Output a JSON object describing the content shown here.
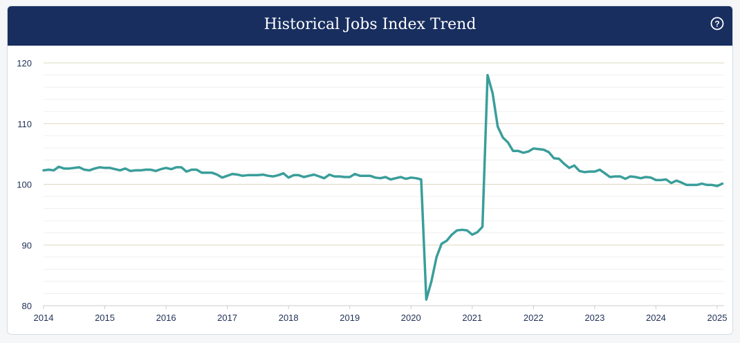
{
  "header": {
    "title": "Historical Jobs Index Trend",
    "help_icon": "question-circle-icon"
  },
  "colors": {
    "header_bg": "#182e5f",
    "line": "#3a9e9a",
    "grid": "#e6e2cf",
    "tick_text": "#1e2f55"
  },
  "chart_data": {
    "type": "line",
    "title": "Historical Jobs Index Trend",
    "xlabel": "",
    "ylabel": "",
    "ylim": [
      80,
      120
    ],
    "yticks": [
      80,
      90,
      100,
      110,
      120
    ],
    "xticks": [
      "2014",
      "2015",
      "2016",
      "2017",
      "2018",
      "2019",
      "2020",
      "2021",
      "2022",
      "2023",
      "2024",
      "2025"
    ],
    "xlim": [
      "2014-01",
      "2025-02"
    ],
    "grid": true,
    "legend": "none",
    "series": [
      {
        "x": [
          "2014-01",
          "2014-02",
          "2014-03",
          "2014-04",
          "2014-05",
          "2014-06",
          "2014-07",
          "2014-08",
          "2014-09",
          "2014-10",
          "2014-11",
          "2014-12",
          "2015-01",
          "2015-02",
          "2015-03",
          "2015-04",
          "2015-05",
          "2015-06",
          "2015-07",
          "2015-08",
          "2015-09",
          "2015-10",
          "2015-11",
          "2015-12",
          "2016-01",
          "2016-02",
          "2016-03",
          "2016-04",
          "2016-05",
          "2016-06",
          "2016-07",
          "2016-08",
          "2016-09",
          "2016-10",
          "2016-11",
          "2016-12",
          "2017-01",
          "2017-02",
          "2017-03",
          "2017-04",
          "2017-05",
          "2017-06",
          "2017-07",
          "2017-08",
          "2017-09",
          "2017-10",
          "2017-11",
          "2017-12",
          "2018-01",
          "2018-02",
          "2018-03",
          "2018-04",
          "2018-05",
          "2018-06",
          "2018-07",
          "2018-08",
          "2018-09",
          "2018-10",
          "2018-11",
          "2018-12",
          "2019-01",
          "2019-02",
          "2019-03",
          "2019-04",
          "2019-05",
          "2019-06",
          "2019-07",
          "2019-08",
          "2019-09",
          "2019-10",
          "2019-11",
          "2019-12",
          "2020-01",
          "2020-02",
          "2020-03",
          "2020-04",
          "2020-05",
          "2020-06",
          "2020-07",
          "2020-08",
          "2020-09",
          "2020-10",
          "2020-11",
          "2020-12",
          "2021-01",
          "2021-02",
          "2021-03",
          "2021-04",
          "2021-05",
          "2021-06",
          "2021-07",
          "2021-08",
          "2021-09",
          "2021-10",
          "2021-11",
          "2021-12",
          "2022-01",
          "2022-02",
          "2022-03",
          "2022-04",
          "2022-05",
          "2022-06",
          "2022-07",
          "2022-08",
          "2022-09",
          "2022-10",
          "2022-11",
          "2022-12",
          "2023-01",
          "2023-02",
          "2023-03",
          "2023-04",
          "2023-05",
          "2023-06",
          "2023-07",
          "2023-08",
          "2023-09",
          "2023-10",
          "2023-11",
          "2023-12",
          "2024-01",
          "2024-02",
          "2024-03",
          "2024-04",
          "2024-05",
          "2024-06",
          "2024-07",
          "2024-08",
          "2024-09",
          "2024-10",
          "2024-11",
          "2024-12",
          "2025-01",
          "2025-02"
        ],
        "values": [
          102.3,
          102.4,
          102.3,
          102.9,
          102.6,
          102.6,
          102.7,
          102.8,
          102.4,
          102.3,
          102.6,
          102.8,
          102.7,
          102.7,
          102.5,
          102.3,
          102.6,
          102.2,
          102.3,
          102.3,
          102.4,
          102.4,
          102.2,
          102.5,
          102.7,
          102.5,
          102.8,
          102.8,
          102.1,
          102.4,
          102.4,
          101.9,
          101.9,
          101.9,
          101.6,
          101.1,
          101.4,
          101.7,
          101.6,
          101.4,
          101.5,
          101.5,
          101.5,
          101.6,
          101.4,
          101.3,
          101.5,
          101.8,
          101.1,
          101.5,
          101.5,
          101.2,
          101.4,
          101.6,
          101.3,
          101.0,
          101.6,
          101.3,
          101.3,
          101.2,
          101.2,
          101.7,
          101.4,
          101.4,
          101.4,
          101.1,
          101.0,
          101.2,
          100.8,
          101.0,
          101.2,
          100.9,
          101.1,
          101.0,
          100.8,
          81.0,
          84.0,
          88.0,
          90.2,
          90.7,
          91.7,
          92.4,
          92.5,
          92.4,
          91.7,
          92.1,
          93.0,
          118.0,
          115.0,
          109.5,
          107.7,
          106.9,
          105.5,
          105.5,
          105.2,
          105.4,
          105.9,
          105.8,
          105.7,
          105.3,
          104.3,
          104.2,
          103.4,
          102.7,
          103.1,
          102.2,
          102.0,
          102.1,
          102.1,
          102.4,
          101.8,
          101.2,
          101.3,
          101.3,
          100.9,
          101.3,
          101.2,
          101.0,
          101.2,
          101.1,
          100.7,
          100.7,
          100.8,
          100.2,
          100.6,
          100.3,
          99.9,
          99.9,
          99.9,
          100.1,
          99.9,
          99.9,
          99.7,
          100.1
        ]
      }
    ]
  }
}
